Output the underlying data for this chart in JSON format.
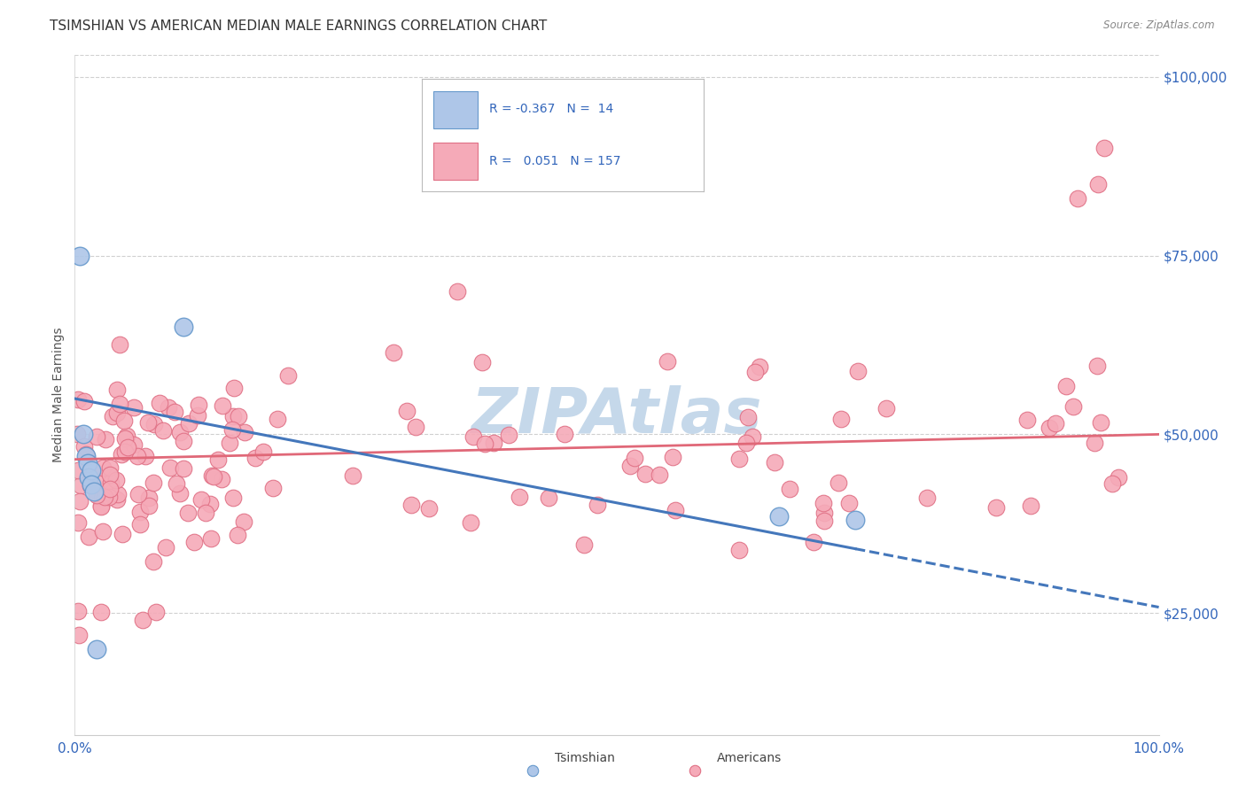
{
  "title": "TSIMSHIAN VS AMERICAN MEDIAN MALE EARNINGS CORRELATION CHART",
  "source": "Source: ZipAtlas.com",
  "ylabel": "Median Male Earnings",
  "yticks": [
    25000,
    50000,
    75000,
    100000
  ],
  "ytick_labels": [
    "$25,000",
    "$50,000",
    "$75,000",
    "$100,000"
  ],
  "xmin": 0.0,
  "xmax": 1.0,
  "ymin": 8000,
  "ymax": 103000,
  "tsimshian_color": "#aec6e8",
  "tsimshian_edge": "#6699cc",
  "american_color": "#f5aab8",
  "american_edge": "#e07085",
  "line_color_tsimshian": "#4477bb",
  "line_color_american": "#e06878",
  "watermark": "ZIPAtlas",
  "watermark_color": "#c5d8ea",
  "legend_box_color_tsimshian": "#aec6e8",
  "legend_box_color_american": "#f5aab8",
  "legend_edge_tsimshian": "#6699cc",
  "legend_edge_american": "#e07085",
  "tsimshian_line_y0": 55000,
  "tsimshian_line_y1": 34000,
  "american_line_y0": 46500,
  "american_line_y1": 50000,
  "tsim_x": [
    0.005,
    0.008,
    0.01,
    0.012,
    0.013,
    0.015,
    0.015,
    0.018,
    0.02,
    0.1,
    0.65,
    0.72
  ],
  "tsim_y": [
    75000,
    50000,
    47000,
    46000,
    44000,
    45000,
    43000,
    42000,
    20000,
    65000,
    38500,
    38000
  ],
  "grid_color": "#d0d0d0",
  "grid_style": "--",
  "bottom_legend_tsimshian": "Tsimshian",
  "bottom_legend_american": "Americans"
}
